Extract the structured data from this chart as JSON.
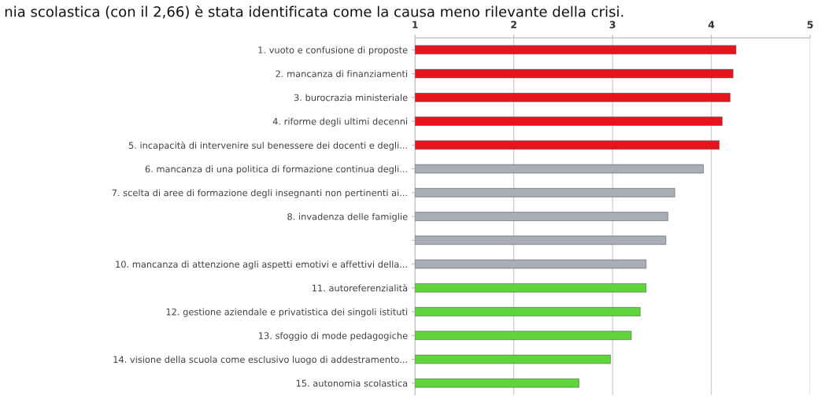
{
  "chart_data": {
    "type": "bar",
    "orientation": "horizontal",
    "title": "nia scolastica (con il 2,66) è stata identificata come la causa meno rilevante della crisi.",
    "categories": [
      "1. vuoto e confusione di proposte",
      "2. mancanza di finanziamenti",
      "3. burocrazia ministeriale",
      "4. riforme degli ultimi decenni",
      "5. incapacità di intervenire sul benessere dei docenti e degli...",
      "6. mancanza di una politica di formazione continua degli...",
      "7. scelta di aree di formazione degli insegnanti non pertinenti ai...",
      "8. invadenza delle famiglie",
      null,
      "10. mancanza di attenzione agli aspetti emotivi e affettivi della...",
      "11. autoreferenzialità",
      "12. gestione aziendale e privatistica dei singoli istituti",
      "13. sfoggio di mode pedagogiche",
      "14. visione della scuola come esclusivo luogo di addestramento...",
      "15. autonomia scolastica"
    ],
    "values": [
      4.25,
      4.22,
      4.19,
      4.11,
      4.08,
      3.92,
      3.63,
      3.56,
      3.54,
      3.34,
      3.34,
      3.28,
      3.19,
      2.98,
      2.66
    ],
    "colors": [
      "#e8141c",
      "#e8141c",
      "#e8141c",
      "#e8141c",
      "#e8141c",
      "#a8aeb5",
      "#a8aeb5",
      "#a8aeb5",
      "#a8aeb5",
      "#a8aeb5",
      "#5ed63a",
      "#5ed63a",
      "#5ed63a",
      "#5ed63a",
      "#5ed63a"
    ],
    "xlim": [
      1,
      5
    ],
    "xticks": [
      1,
      2,
      3,
      4,
      5
    ],
    "grid": "x"
  }
}
